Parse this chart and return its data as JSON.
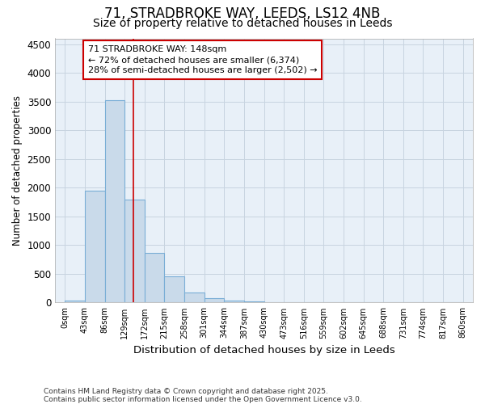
{
  "title": "71, STRADBROKE WAY, LEEDS, LS12 4NB",
  "subtitle": "Size of property relative to detached houses in Leeds",
  "xlabel": "Distribution of detached houses by size in Leeds",
  "ylabel": "Number of detached properties",
  "annotation_line1": "71 STRADBROKE WAY: 148sqm",
  "annotation_line2": "← 72% of detached houses are smaller (6,374)",
  "annotation_line3": "28% of semi-detached houses are larger (2,502) →",
  "bin_edges": [
    0,
    43,
    86,
    129,
    172,
    215,
    258,
    301,
    344,
    387,
    430,
    473,
    516,
    559,
    602,
    645,
    688,
    731,
    774,
    817,
    860
  ],
  "bar_heights": [
    30,
    1950,
    3520,
    1800,
    860,
    450,
    170,
    80,
    30,
    15,
    5,
    0,
    0,
    0,
    0,
    0,
    0,
    0,
    0,
    0
  ],
  "bar_facecolor": "#c9daea",
  "bar_edgecolor": "#7aaed6",
  "vline_color": "#cc0000",
  "vline_x": 148,
  "annotation_box_edgecolor": "#cc0000",
  "annotation_bg": "#ffffff",
  "grid_color": "#c8d4e0",
  "bg_color": "#ffffff",
  "plot_bg_color": "#e8f0f8",
  "ylim": [
    0,
    4600
  ],
  "xlim_min": -21.5,
  "xlim_max": 881.5,
  "footnote_line1": "Contains HM Land Registry data © Crown copyright and database right 2025.",
  "footnote_line2": "Contains public sector information licensed under the Open Government Licence v3.0.",
  "title_fontsize": 12,
  "subtitle_fontsize": 10,
  "annotation_fontsize": 8,
  "footnote_fontsize": 6.5,
  "xlabel_fontsize": 9.5,
  "ylabel_fontsize": 8.5,
  "tick_fontsize": 7,
  "ytick_fontsize": 8.5,
  "tick_labels": [
    "0sqm",
    "43sqm",
    "86sqm",
    "129sqm",
    "172sqm",
    "215sqm",
    "258sqm",
    "301sqm",
    "344sqm",
    "387sqm",
    "430sqm",
    "473sqm",
    "516sqm",
    "559sqm",
    "602sqm",
    "645sqm",
    "688sqm",
    "731sqm",
    "774sqm",
    "817sqm",
    "860sqm"
  ],
  "yticks": [
    0,
    500,
    1000,
    1500,
    2000,
    2500,
    3000,
    3500,
    4000,
    4500
  ]
}
